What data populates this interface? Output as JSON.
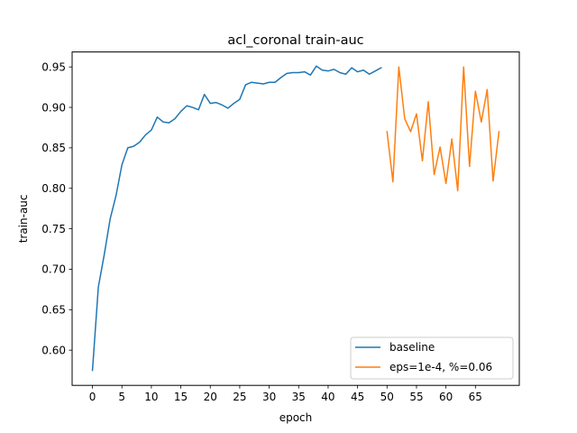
{
  "chart_data": {
    "type": "line",
    "title": "acl_coronal train-auc",
    "xlabel": "epoch",
    "ylabel": "train-auc",
    "xlim": [
      -3.45,
      72.45
    ],
    "ylim": [
      0.5565,
      0.9685
    ],
    "xticks": [
      0,
      5,
      10,
      15,
      20,
      25,
      30,
      35,
      40,
      45,
      50,
      55,
      60,
      65
    ],
    "yticks": [
      0.6,
      0.65,
      0.7,
      0.75,
      0.8,
      0.85,
      0.9,
      0.95
    ],
    "ytick_labels": [
      "0.60",
      "0.65",
      "0.70",
      "0.75",
      "0.80",
      "0.85",
      "0.90",
      "0.95"
    ],
    "grid": false,
    "legend_position": "lower-right",
    "series": [
      {
        "name": "baseline",
        "color": "#1f77b4",
        "x": [
          0,
          1,
          2,
          3,
          4,
          5,
          6,
          7,
          8,
          9,
          10,
          11,
          12,
          13,
          14,
          15,
          16,
          17,
          18,
          19,
          20,
          21,
          22,
          23,
          24,
          25,
          26,
          27,
          28,
          29,
          30,
          31,
          32,
          33,
          34,
          35,
          36,
          37,
          38,
          39,
          40,
          41,
          42,
          43,
          44,
          45,
          46,
          47,
          48,
          49
        ],
        "y": [
          0.575,
          0.678,
          0.718,
          0.762,
          0.791,
          0.829,
          0.85,
          0.852,
          0.857,
          0.866,
          0.872,
          0.888,
          0.882,
          0.881,
          0.886,
          0.895,
          0.902,
          0.9,
          0.897,
          0.916,
          0.905,
          0.906,
          0.903,
          0.899,
          0.905,
          0.91,
          0.928,
          0.931,
          0.93,
          0.929,
          0.931,
          0.931,
          0.937,
          0.942,
          0.943,
          0.943,
          0.944,
          0.94,
          0.951,
          0.946,
          0.945,
          0.947,
          0.943,
          0.941,
          0.949,
          0.944,
          0.946,
          0.941,
          0.945,
          0.949
        ]
      },
      {
        "name": "eps=1e-4, %=0.06",
        "color": "#ff7f0e",
        "x": [
          50,
          51,
          52,
          53,
          54,
          55,
          56,
          57,
          58,
          59,
          60,
          61,
          62,
          63,
          64,
          65,
          66,
          67,
          68,
          69
        ],
        "y": [
          0.87,
          0.808,
          0.95,
          0.886,
          0.87,
          0.892,
          0.834,
          0.907,
          0.817,
          0.851,
          0.806,
          0.861,
          0.797,
          0.95,
          0.827,
          0.92,
          0.882,
          0.922,
          0.809,
          0.87
        ]
      }
    ]
  }
}
